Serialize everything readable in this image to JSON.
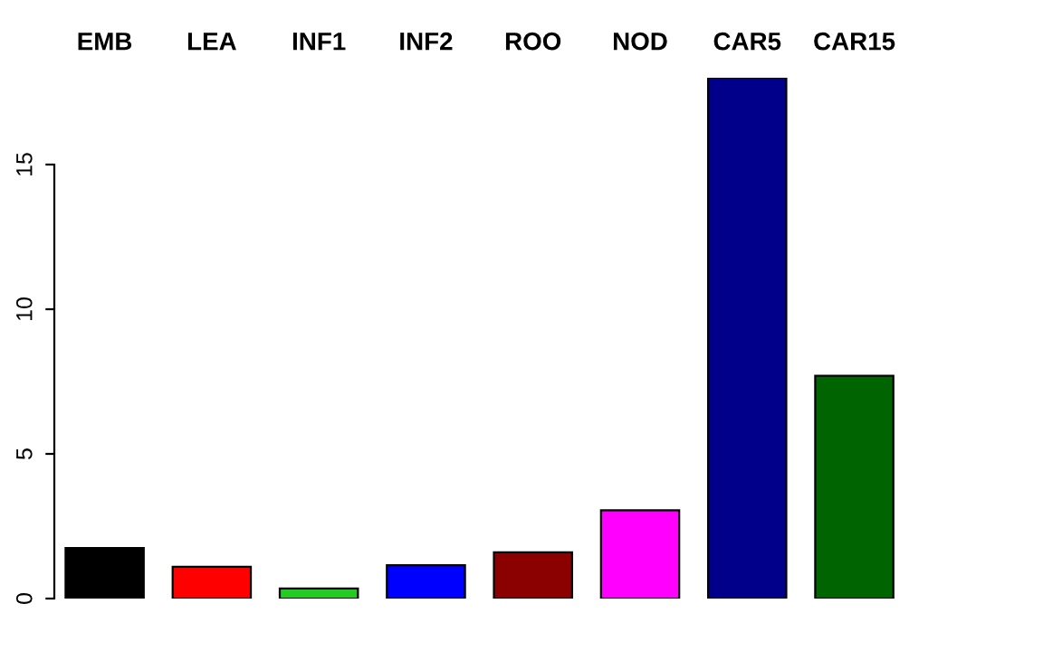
{
  "chart_data": {
    "type": "bar",
    "categories": [
      "EMB",
      "LEA",
      "INF1",
      "INF2",
      "ROO",
      "NOD",
      "CAR5",
      "CAR15"
    ],
    "values": [
      1.75,
      1.1,
      0.35,
      1.15,
      1.6,
      3.05,
      18.0,
      7.7
    ],
    "colors": [
      "#000000",
      "#ff0000",
      "#22cc22",
      "#0000ff",
      "#8b0000",
      "#ff00ff",
      "#00008b",
      "#006400"
    ],
    "ylim": [
      0,
      18
    ],
    "yticks": [
      0,
      5,
      10,
      15
    ],
    "grid": false,
    "legend": false
  }
}
